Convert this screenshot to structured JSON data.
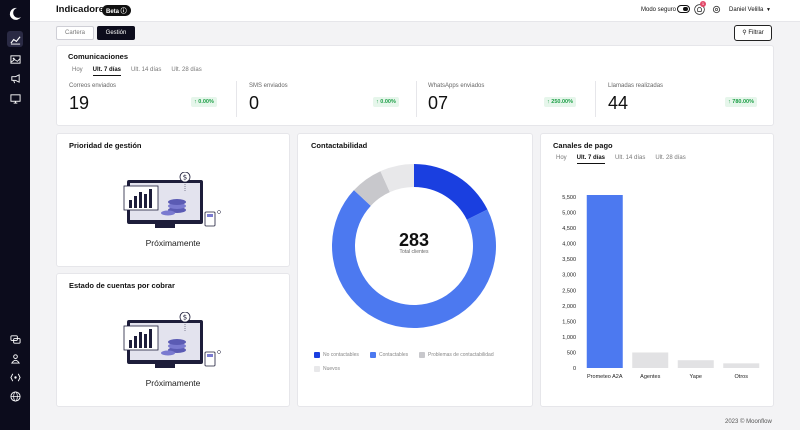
{
  "header": {
    "title": "Indicadores",
    "beta": "Beta ⓘ",
    "modo_seguro": "Modo seguro",
    "notification_count": "1",
    "user_name": "Daniel Velilla"
  },
  "view_tabs": [
    "Cartera",
    "Gestión"
  ],
  "filter_label": "Filtrar",
  "comunicaciones": {
    "title": "Comunicaciones",
    "tabs": [
      "Hoy",
      "Ult. 7 días",
      "Ult. 14 días",
      "Ult. 28 días"
    ],
    "selected_tab": "Ult. 7 días",
    "metrics": [
      {
        "label": "Correos enviados",
        "value": "19",
        "pct": "↑ 0.00%"
      },
      {
        "label": "SMS enviados",
        "value": "0",
        "pct": "↑ 0.00%"
      },
      {
        "label": "WhatsApps enviados",
        "value": "07",
        "pct": "↑ 250.00%"
      },
      {
        "label": "Llamadas realizadas",
        "value": "44",
        "pct": "↑ 780.00%"
      }
    ]
  },
  "prioridad": {
    "title": "Prioridad de gestión",
    "status": "Próximamente"
  },
  "estado": {
    "title": "Estado de cuentas por cobrar",
    "status": "Próximamente"
  },
  "contactabilidad": {
    "title": "Contactabilidad",
    "total": "283",
    "total_label": "Total clientes",
    "legend": [
      {
        "label": "No contactables",
        "color": "#1a3fe0"
      },
      {
        "label": "Contactables",
        "color": "#4c79f0"
      },
      {
        "label": "Problemas de contactabilidad",
        "color": "#c8c8cc"
      },
      {
        "label": "Nuevos",
        "color": "#e8e8ea"
      }
    ]
  },
  "canales": {
    "title": "Canales de pago",
    "tabs": [
      "Hoy",
      "Ult. 7 días",
      "Ult. 14 días",
      "Ult. 28 días"
    ],
    "selected_tab": "Ult. 7 días"
  },
  "chart_data": [
    {
      "type": "pie",
      "title": "Contactabilidad",
      "categories": [
        "No contactables",
        "Contactables",
        "Problemas de contactabilidad",
        "Nuevos"
      ],
      "values": [
        50,
        196,
        18,
        19
      ],
      "colors": [
        "#1a3fe0",
        "#4c79f0",
        "#c8c8cc",
        "#e8e8ea"
      ]
    },
    {
      "type": "bar",
      "title": "Canales de pago",
      "categories": [
        "Prometeo A2A",
        "Agentes",
        "Yape",
        "Otros"
      ],
      "values": [
        5600,
        500,
        250,
        150
      ],
      "colors": [
        "#4c79f0",
        "#e2e2e4",
        "#e2e2e4",
        "#e2e2e4"
      ],
      "ylim": [
        0,
        5500
      ],
      "yticks": [
        "0",
        "500",
        "1,000",
        "1,500",
        "2,000",
        "2,500",
        "3,000",
        "3,500",
        "4,000",
        "4,500",
        "5,000",
        "5,500"
      ]
    }
  ],
  "footer": "2023 © Moonflow"
}
